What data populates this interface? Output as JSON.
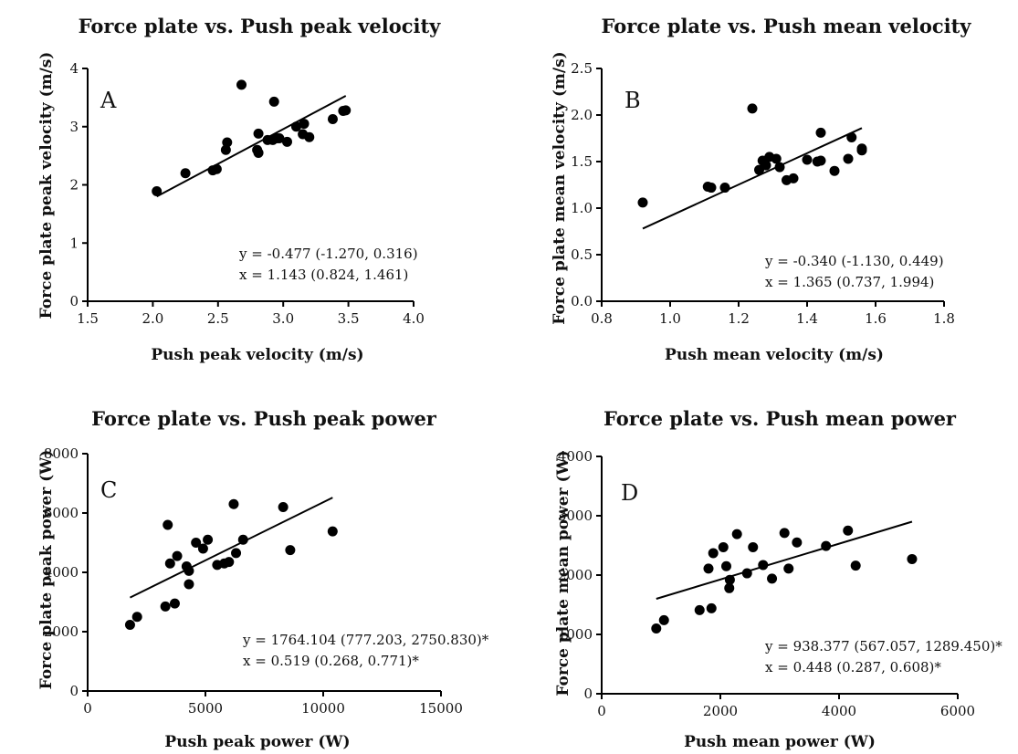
{
  "chart_data": [
    {
      "type": "scatter",
      "title": "Force plate vs. Push peak velocity",
      "panel": "A",
      "xlabel": "Push peak velocity (m/s)",
      "ylabel": "Force plate peak velocity (m/s)",
      "xlim": [
        1.5,
        4.0
      ],
      "ylim": [
        0,
        4
      ],
      "x_ticks": [
        1.5,
        2.0,
        2.5,
        3.0,
        3.5,
        4.0
      ],
      "y_ticks": [
        0,
        1,
        2,
        3,
        4
      ],
      "x_tick_labels": [
        "1.5",
        "2.0",
        "2.5",
        "3.0",
        "3.5",
        "4.0"
      ],
      "y_tick_labels": [
        "0",
        "1",
        "2",
        "3",
        "4"
      ],
      "points": [
        [
          2.03,
          1.89
        ],
        [
          2.25,
          2.2
        ],
        [
          2.46,
          2.25
        ],
        [
          2.49,
          2.27
        ],
        [
          2.56,
          2.6
        ],
        [
          2.57,
          2.73
        ],
        [
          2.68,
          3.72
        ],
        [
          2.8,
          2.6
        ],
        [
          2.81,
          2.55
        ],
        [
          2.81,
          2.88
        ],
        [
          2.88,
          2.77
        ],
        [
          2.92,
          2.77
        ],
        [
          2.93,
          3.43
        ],
        [
          2.95,
          2.8
        ],
        [
          2.97,
          2.8
        ],
        [
          3.03,
          2.74
        ],
        [
          3.1,
          3.0
        ],
        [
          3.15,
          2.87
        ],
        [
          3.16,
          3.05
        ],
        [
          3.2,
          2.82
        ],
        [
          3.38,
          3.13
        ],
        [
          3.46,
          3.27
        ],
        [
          3.48,
          3.28
        ]
      ],
      "fit_line": {
        "x": [
          2.03,
          3.48
        ],
        "y": [
          1.8,
          3.53
        ]
      },
      "equations": [
        "y = -0.477 (-1.270, 0.316)",
        "x = 1.143 (0.824, 1.461)"
      ]
    },
    {
      "type": "scatter",
      "title": "Force plate vs. Push mean velocity",
      "panel": "B",
      "xlabel": "Push mean velocity (m/s)",
      "ylabel": "Force plate mean velocity (m/s)",
      "xlim": [
        0.8,
        1.8
      ],
      "ylim": [
        0,
        2.5
      ],
      "x_ticks": [
        0.8,
        1.0,
        1.2,
        1.4,
        1.6,
        1.8
      ],
      "y_ticks": [
        0,
        0.5,
        1.0,
        1.5,
        2.0,
        2.5
      ],
      "x_tick_labels": [
        "0.8",
        "1.0",
        "1.2",
        "1.4",
        "1.6",
        "1.8"
      ],
      "y_tick_labels": [
        "0.0",
        "0.5",
        "1.0",
        "1.5",
        "2.0",
        "2.5"
      ],
      "points": [
        [
          0.92,
          1.06
        ],
        [
          1.11,
          1.23
        ],
        [
          1.12,
          1.22
        ],
        [
          1.16,
          1.22
        ],
        [
          1.24,
          2.07
        ],
        [
          1.26,
          1.41
        ],
        [
          1.27,
          1.51
        ],
        [
          1.28,
          1.46
        ],
        [
          1.29,
          1.55
        ],
        [
          1.31,
          1.53
        ],
        [
          1.32,
          1.44
        ],
        [
          1.34,
          1.3
        ],
        [
          1.36,
          1.32
        ],
        [
          1.4,
          1.52
        ],
        [
          1.43,
          1.5
        ],
        [
          1.44,
          1.51
        ],
        [
          1.44,
          1.81
        ],
        [
          1.48,
          1.4
        ],
        [
          1.52,
          1.53
        ],
        [
          1.53,
          1.76
        ],
        [
          1.56,
          1.62
        ],
        [
          1.56,
          1.64
        ]
      ],
      "fit_line": {
        "x": [
          0.92,
          1.56
        ],
        "y": [
          0.78,
          1.86
        ]
      },
      "equations": [
        "y = -0.340 (-1.130, 0.449)",
        "x = 1.365 (0.737, 1.994)"
      ]
    },
    {
      "type": "scatter",
      "title": "Force plate vs. Push peak power",
      "panel": "C",
      "xlabel": "Push peak power (W)",
      "ylabel": "Force plate peak power (W)",
      "xlim": [
        0,
        15000
      ],
      "ylim": [
        0,
        8000
      ],
      "x_ticks": [
        0,
        5000,
        10000,
        15000
      ],
      "y_ticks": [
        0,
        2000,
        4000,
        6000,
        8000
      ],
      "x_tick_labels": [
        "0",
        "5000",
        "10000",
        "15000"
      ],
      "y_tick_labels": [
        "0",
        "2000",
        "4000",
        "6000",
        "8000"
      ],
      "points": [
        [
          1800,
          2230
        ],
        [
          2100,
          2500
        ],
        [
          3300,
          2850
        ],
        [
          3400,
          5600
        ],
        [
          3500,
          4300
        ],
        [
          3700,
          2950
        ],
        [
          3800,
          4550
        ],
        [
          4200,
          4200
        ],
        [
          4300,
          4050
        ],
        [
          4300,
          3600
        ],
        [
          4600,
          5000
        ],
        [
          4900,
          4800
        ],
        [
          5100,
          5100
        ],
        [
          5500,
          4250
        ],
        [
          5800,
          4300
        ],
        [
          6000,
          4350
        ],
        [
          6200,
          6300
        ],
        [
          6300,
          4650
        ],
        [
          6600,
          5100
        ],
        [
          8300,
          6200
        ],
        [
          8600,
          4750
        ],
        [
          10400,
          5380
        ]
      ],
      "fit_line": {
        "x": [
          1800,
          10400
        ],
        "y": [
          3150,
          6520
        ]
      },
      "equations": [
        "y = 1764.104 (777.203, 2750.830)*",
        "x = 0.519 (0.268, 0.771)*"
      ]
    },
    {
      "type": "scatter",
      "title": "Force plate vs. Push mean power",
      "panel": "D",
      "xlabel": "Push mean power (W)",
      "ylabel": "Force plate mean power (W)",
      "xlim": [
        0,
        6000
      ],
      "ylim": [
        0,
        4000
      ],
      "x_ticks": [
        0,
        2000,
        4000,
        6000
      ],
      "y_ticks": [
        0,
        1000,
        2000,
        3000,
        4000
      ],
      "x_tick_labels": [
        "0",
        "2000",
        "4000",
        "6000"
      ],
      "y_tick_labels": [
        "0",
        "1000",
        "2000",
        "3000",
        "4000"
      ],
      "points": [
        [
          920,
          1100
        ],
        [
          1050,
          1240
        ],
        [
          1650,
          1410
        ],
        [
          1800,
          2110
        ],
        [
          1850,
          1440
        ],
        [
          1880,
          2370
        ],
        [
          2050,
          2470
        ],
        [
          2100,
          2150
        ],
        [
          2150,
          1780
        ],
        [
          2160,
          1920
        ],
        [
          2280,
          2690
        ],
        [
          2450,
          2030
        ],
        [
          2550,
          2470
        ],
        [
          2720,
          2170
        ],
        [
          2870,
          1940
        ],
        [
          3080,
          2710
        ],
        [
          3150,
          2110
        ],
        [
          3290,
          2550
        ],
        [
          3780,
          2490
        ],
        [
          4150,
          2750
        ],
        [
          4280,
          2160
        ],
        [
          5230,
          2270
        ]
      ],
      "fit_line": {
        "x": [
          920,
          5230
        ],
        "y": [
          1600,
          2900
        ]
      },
      "equations": [
        "y = 938.377 (567.057, 1289.450)*",
        "x = 0.448 (0.287, 0.608)*"
      ]
    }
  ]
}
